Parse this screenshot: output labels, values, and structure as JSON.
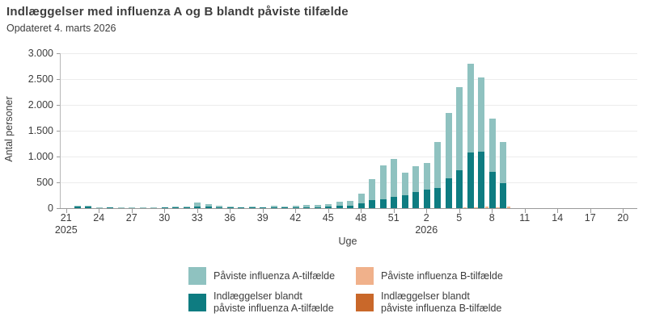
{
  "header": {
    "title": "Indlæggelser med influenza A og B blandt påviste tilfælde",
    "subtitle": "Opdateret 4. marts 2026"
  },
  "chart_data": {
    "type": "bar",
    "title": "Indlæggelser med influenza A og B blandt påviste tilfælde",
    "subtitle": "Opdateret 4. marts 2026",
    "xlabel": "Uge",
    "ylabel": "Antal personer",
    "ylim": [
      0,
      3000
    ],
    "grid": true,
    "legend_position": "bottom",
    "bar_layout": "per-week group: influenza-A bar (hospitalization subset drawn as darker bottom segment) with a thin influenza-B bar to its right",
    "yticks": [
      {
        "value": 0,
        "label": "0"
      },
      {
        "value": 500,
        "label": "500"
      },
      {
        "value": 1000,
        "label": "1.000"
      },
      {
        "value": 1500,
        "label": "1.500"
      },
      {
        "value": 2000,
        "label": "2.000"
      },
      {
        "value": 2500,
        "label": "2.500"
      },
      {
        "value": 3000,
        "label": "3.000"
      }
    ],
    "xtick_weeks": [
      "21",
      "24",
      "27",
      "30",
      "33",
      "36",
      "39",
      "42",
      "45",
      "48",
      "51",
      "2",
      "5",
      "8",
      "11",
      "14",
      "17",
      "20"
    ],
    "year_labels": [
      {
        "under_week": "21",
        "year": "2025"
      },
      {
        "under_week": "2",
        "year": "2026"
      }
    ],
    "series": [
      {
        "name": "Påviste influenza A-tilfælde",
        "key": "a_cases",
        "color": "#8fc2c0"
      },
      {
        "name": "Indlæggelser blandt påviste influenza A-tilfælde",
        "key": "a_hosp",
        "color": "#0e7c81"
      },
      {
        "name": "Påviste influenza B-tilfælde",
        "key": "b_cases",
        "color": "#f0b18b"
      },
      {
        "name": "Indlæggelser blandt påviste influenza B-tilfælde",
        "key": "b_hosp",
        "color": "#c9682a"
      }
    ],
    "weeks": [
      {
        "week": "21",
        "year": 2025,
        "a_cases": 0,
        "a_hosp": 0,
        "b_cases": 0,
        "b_hosp": 0
      },
      {
        "week": "22",
        "year": 2025,
        "a_cases": 45,
        "a_hosp": 25,
        "b_cases": 0,
        "b_hosp": 0
      },
      {
        "week": "23",
        "year": 2025,
        "a_cases": 40,
        "a_hosp": 25,
        "b_cases": 0,
        "b_hosp": 0
      },
      {
        "week": "24",
        "year": 2025,
        "a_cases": 5,
        "a_hosp": 0,
        "b_cases": 0,
        "b_hosp": 0
      },
      {
        "week": "25",
        "year": 2025,
        "a_cases": 20,
        "a_hosp": 5,
        "b_cases": 0,
        "b_hosp": 0
      },
      {
        "week": "26",
        "year": 2025,
        "a_cases": 10,
        "a_hosp": 0,
        "b_cases": 0,
        "b_hosp": 0
      },
      {
        "week": "27",
        "year": 2025,
        "a_cases": 5,
        "a_hosp": 0,
        "b_cases": 0,
        "b_hosp": 0
      },
      {
        "week": "28",
        "year": 2025,
        "a_cases": 5,
        "a_hosp": 0,
        "b_cases": 0,
        "b_hosp": 0
      },
      {
        "week": "29",
        "year": 2025,
        "a_cases": 5,
        "a_hosp": 0,
        "b_cases": 0,
        "b_hosp": 0
      },
      {
        "week": "30",
        "year": 2025,
        "a_cases": 15,
        "a_hosp": 5,
        "b_cases": 0,
        "b_hosp": 0
      },
      {
        "week": "31",
        "year": 2025,
        "a_cases": 25,
        "a_hosp": 5,
        "b_cases": 0,
        "b_hosp": 0
      },
      {
        "week": "32",
        "year": 2025,
        "a_cases": 30,
        "a_hosp": 10,
        "b_cases": 0,
        "b_hosp": 0
      },
      {
        "week": "33",
        "year": 2025,
        "a_cases": 110,
        "a_hosp": 35,
        "b_cases": 0,
        "b_hosp": 0
      },
      {
        "week": "34",
        "year": 2025,
        "a_cases": 75,
        "a_hosp": 25,
        "b_cases": 0,
        "b_hosp": 0
      },
      {
        "week": "35",
        "year": 2025,
        "a_cases": 40,
        "a_hosp": 10,
        "b_cases": 0,
        "b_hosp": 0
      },
      {
        "week": "36",
        "year": 2025,
        "a_cases": 30,
        "a_hosp": 10,
        "b_cases": 0,
        "b_hosp": 0
      },
      {
        "week": "37",
        "year": 2025,
        "a_cases": 20,
        "a_hosp": 5,
        "b_cases": 0,
        "b_hosp": 0
      },
      {
        "week": "38",
        "year": 2025,
        "a_cases": 25,
        "a_hosp": 5,
        "b_cases": 0,
        "b_hosp": 0
      },
      {
        "week": "39",
        "year": 2025,
        "a_cases": 15,
        "a_hosp": 5,
        "b_cases": 0,
        "b_hosp": 0
      },
      {
        "week": "40",
        "year": 2025,
        "a_cases": 40,
        "a_hosp": 15,
        "b_cases": 0,
        "b_hosp": 0
      },
      {
        "week": "41",
        "year": 2025,
        "a_cases": 30,
        "a_hosp": 10,
        "b_cases": 0,
        "b_hosp": 0
      },
      {
        "week": "42",
        "year": 2025,
        "a_cases": 50,
        "a_hosp": 15,
        "b_cases": 0,
        "b_hosp": 0
      },
      {
        "week": "43",
        "year": 2025,
        "a_cases": 60,
        "a_hosp": 20,
        "b_cases": 0,
        "b_hosp": 0
      },
      {
        "week": "44",
        "year": 2025,
        "a_cases": 65,
        "a_hosp": 20,
        "b_cases": 0,
        "b_hosp": 0
      },
      {
        "week": "45",
        "year": 2025,
        "a_cases": 80,
        "a_hosp": 30,
        "b_cases": 0,
        "b_hosp": 0
      },
      {
        "week": "46",
        "year": 2025,
        "a_cases": 125,
        "a_hosp": 45,
        "b_cases": 0,
        "b_hosp": 0
      },
      {
        "week": "47",
        "year": 2025,
        "a_cases": 140,
        "a_hosp": 45,
        "b_cases": 0,
        "b_hosp": 0
      },
      {
        "week": "48",
        "year": 2025,
        "a_cases": 280,
        "a_hosp": 100,
        "b_cases": 0,
        "b_hosp": 0
      },
      {
        "week": "49",
        "year": 2025,
        "a_cases": 560,
        "a_hosp": 160,
        "b_cases": 0,
        "b_hosp": 0
      },
      {
        "week": "50",
        "year": 2025,
        "a_cases": 825,
        "a_hosp": 175,
        "b_cases": 0,
        "b_hosp": 0
      },
      {
        "week": "51",
        "year": 2025,
        "a_cases": 950,
        "a_hosp": 215,
        "b_cases": 0,
        "b_hosp": 0
      },
      {
        "week": "52",
        "year": 2025,
        "a_cases": 690,
        "a_hosp": 255,
        "b_cases": 0,
        "b_hosp": 0
      },
      {
        "week": "1",
        "year": 2026,
        "a_cases": 810,
        "a_hosp": 320,
        "b_cases": 0,
        "b_hosp": 0
      },
      {
        "week": "2",
        "year": 2026,
        "a_cases": 870,
        "a_hosp": 355,
        "b_cases": 0,
        "b_hosp": 0
      },
      {
        "week": "3",
        "year": 2026,
        "a_cases": 1275,
        "a_hosp": 395,
        "b_cases": 0,
        "b_hosp": 0
      },
      {
        "week": "4",
        "year": 2026,
        "a_cases": 1840,
        "a_hosp": 575,
        "b_cases": 0,
        "b_hosp": 0
      },
      {
        "week": "5",
        "year": 2026,
        "a_cases": 2345,
        "a_hosp": 740,
        "b_cases": 10,
        "b_hosp": 0
      },
      {
        "week": "6",
        "year": 2026,
        "a_cases": 2790,
        "a_hosp": 1075,
        "b_cases": 20,
        "b_hosp": 0
      },
      {
        "week": "7",
        "year": 2026,
        "a_cases": 2530,
        "a_hosp": 1095,
        "b_cases": 25,
        "b_hosp": 0
      },
      {
        "week": "8",
        "year": 2026,
        "a_cases": 1740,
        "a_hosp": 710,
        "b_cases": 20,
        "b_hosp": 0
      },
      {
        "week": "9",
        "year": 2026,
        "a_cases": 1275,
        "a_hosp": 480,
        "b_cases": 30,
        "b_hosp": 0
      },
      {
        "week": "10",
        "year": 2026,
        "a_cases": 0,
        "a_hosp": 0,
        "b_cases": 0,
        "b_hosp": 0
      },
      {
        "week": "11",
        "year": 2026,
        "a_cases": 0,
        "a_hosp": 0,
        "b_cases": 0,
        "b_hosp": 0
      },
      {
        "week": "12",
        "year": 2026,
        "a_cases": 0,
        "a_hosp": 0,
        "b_cases": 0,
        "b_hosp": 0
      },
      {
        "week": "13",
        "year": 2026,
        "a_cases": 0,
        "a_hosp": 0,
        "b_cases": 0,
        "b_hosp": 0
      },
      {
        "week": "14",
        "year": 2026,
        "a_cases": 0,
        "a_hosp": 0,
        "b_cases": 0,
        "b_hosp": 0
      },
      {
        "week": "15",
        "year": 2026,
        "a_cases": 0,
        "a_hosp": 0,
        "b_cases": 0,
        "b_hosp": 0
      },
      {
        "week": "16",
        "year": 2026,
        "a_cases": 0,
        "a_hosp": 0,
        "b_cases": 0,
        "b_hosp": 0
      },
      {
        "week": "17",
        "year": 2026,
        "a_cases": 0,
        "a_hosp": 0,
        "b_cases": 0,
        "b_hosp": 0
      },
      {
        "week": "18",
        "year": 2026,
        "a_cases": 0,
        "a_hosp": 0,
        "b_cases": 0,
        "b_hosp": 0
      },
      {
        "week": "19",
        "year": 2026,
        "a_cases": 0,
        "a_hosp": 0,
        "b_cases": 0,
        "b_hosp": 0
      },
      {
        "week": "20",
        "year": 2026,
        "a_cases": 0,
        "a_hosp": 0,
        "b_cases": 0,
        "b_hosp": 0
      }
    ]
  },
  "legend": {
    "items": [
      {
        "id": "a-cases",
        "label_lines": [
          "Påviste influenza A-tilfælde"
        ],
        "color": "#8fc2c0",
        "col": 0,
        "row": 0
      },
      {
        "id": "a-hosp",
        "label_lines": [
          "Indlæggelser blandt",
          "påviste influenza A-tilfælde"
        ],
        "color": "#0e7c81",
        "col": 0,
        "row": 1
      },
      {
        "id": "b-cases",
        "label_lines": [
          "Påviste influenza B-tilfælde"
        ],
        "color": "#f0b18b",
        "col": 1,
        "row": 0
      },
      {
        "id": "b-hosp",
        "label_lines": [
          "Indlæggelser blandt",
          "påviste influenza B-tilfælde"
        ],
        "color": "#c9682a",
        "col": 1,
        "row": 1
      }
    ]
  }
}
